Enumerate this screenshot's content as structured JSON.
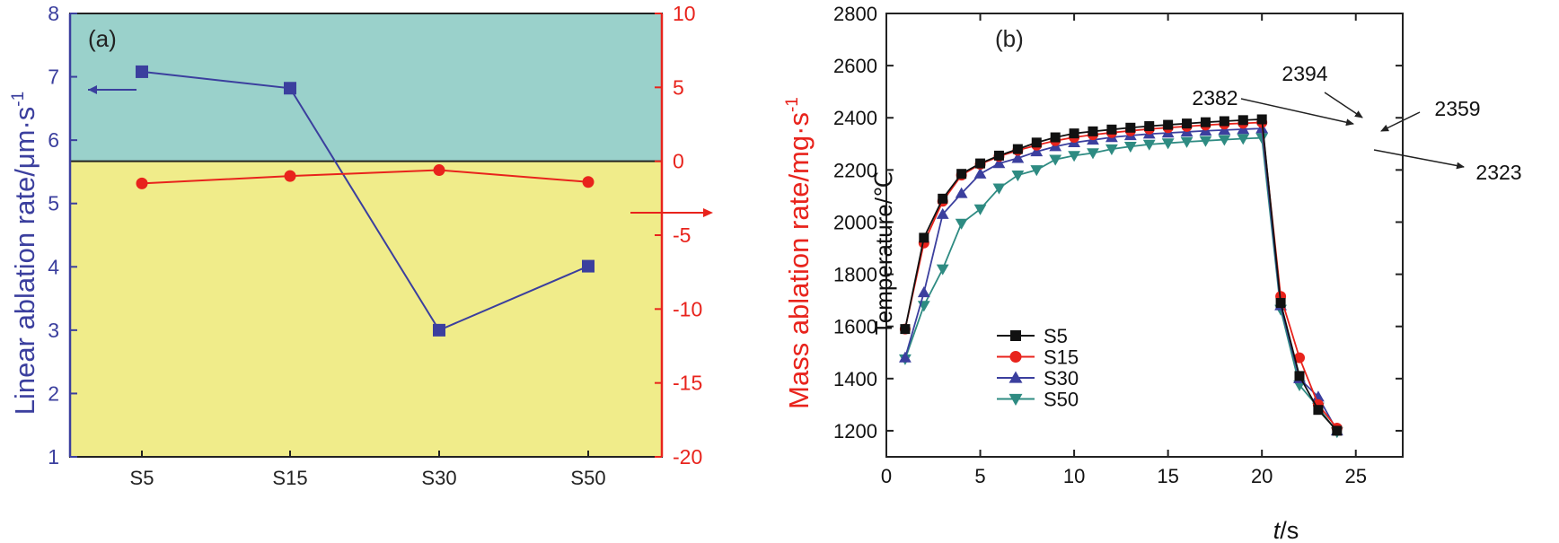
{
  "chart_data": [
    {
      "panel": "a",
      "type": "line",
      "panel_label": "(a)",
      "categories": [
        "S5",
        "S15",
        "S30",
        "S50"
      ],
      "colors": {
        "blue": "#3b3f9e",
        "red": "#e8231c",
        "top_bg": "#9ad1cb",
        "bottom_bg": "#f0ec8a"
      },
      "left_axis": {
        "label": "Linear ablation rate/μm·s",
        "label_sup": "-1",
        "ylim": [
          1,
          8
        ],
        "ticks": [
          1,
          2,
          3,
          4,
          5,
          6,
          7,
          8
        ]
      },
      "right_axis": {
        "label": "Mass ablation rate/mg·s",
        "label_sup": "-1",
        "ylim": [
          -20,
          10
        ],
        "ticks": [
          -20,
          -15,
          -10,
          -5,
          0,
          5,
          10
        ]
      },
      "series": [
        {
          "name": "Linear ablation rate",
          "axis": "left",
          "marker": "square",
          "values": [
            7.08,
            6.82,
            3.0,
            4.01
          ]
        },
        {
          "name": "Mass ablation rate",
          "axis": "right",
          "marker": "circle",
          "values": [
            -1.5,
            -1.0,
            -0.6,
            -1.4
          ]
        }
      ],
      "background_split_right_value": 0
    },
    {
      "panel": "b",
      "type": "line",
      "panel_label": "(b)",
      "xlabel_italic": "t",
      "xlabel_rest": "/s",
      "ylabel": "Temperature/℃",
      "xlim": [
        0,
        27.5
      ],
      "ylim": [
        1100,
        2800
      ],
      "xticks": [
        0,
        5,
        10,
        15,
        20,
        25
      ],
      "yticks": [
        1200,
        1400,
        1600,
        1800,
        2000,
        2200,
        2400,
        2600,
        2800
      ],
      "x": [
        1,
        2,
        3,
        4,
        5,
        6,
        7,
        8,
        9,
        10,
        11,
        12,
        13,
        14,
        15,
        16,
        17,
        18,
        19,
        20,
        21,
        22,
        23,
        24
      ],
      "series": [
        {
          "name": "S5",
          "color": "#111111",
          "marker": "square",
          "values": [
            1590,
            1940,
            2090,
            2185,
            2225,
            2255,
            2280,
            2305,
            2325,
            2340,
            2348,
            2355,
            2362,
            2368,
            2373,
            2378,
            2383,
            2387,
            2391,
            2394,
            1690,
            1410,
            1280,
            1200
          ]
        },
        {
          "name": "S15",
          "color": "#e8231c",
          "marker": "circle",
          "values": [
            1590,
            1920,
            2080,
            2180,
            2222,
            2252,
            2275,
            2295,
            2312,
            2325,
            2335,
            2343,
            2350,
            2357,
            2362,
            2367,
            2372,
            2376,
            2379,
            2382,
            1715,
            1480,
            1300,
            1210
          ]
        },
        {
          "name": "S30",
          "color": "#3b3f9e",
          "marker": "triangle-up",
          "values": [
            1480,
            1730,
            2030,
            2110,
            2185,
            2225,
            2245,
            2270,
            2290,
            2305,
            2315,
            2325,
            2332,
            2338,
            2342,
            2346,
            2350,
            2353,
            2356,
            2359,
            1680,
            1400,
            1330,
            1200
          ]
        },
        {
          "name": "S50",
          "color": "#2e8b82",
          "marker": "triangle-down",
          "values": [
            1475,
            1680,
            1820,
            1995,
            2050,
            2130,
            2180,
            2200,
            2240,
            2255,
            2265,
            2280,
            2290,
            2298,
            2303,
            2308,
            2312,
            2316,
            2320,
            2323,
            1665,
            1375,
            1290,
            1195
          ]
        }
      ],
      "annotations": [
        "2394",
        "2382",
        "2359",
        "2323"
      ],
      "legend_position": "lower-left"
    }
  ]
}
